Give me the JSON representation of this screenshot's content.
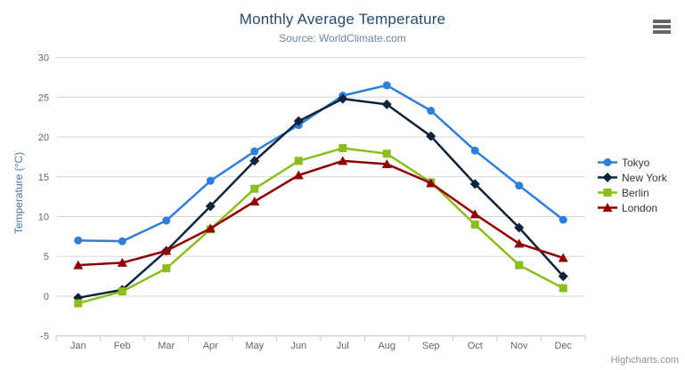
{
  "header": {
    "title": "Monthly Average Temperature",
    "subtitle": "Source: WorldClimate.com",
    "menu_icon": "hamburger-icon"
  },
  "credit": {
    "label": "Highcharts.com"
  },
  "colors": {
    "title": "#274b6d",
    "subtitle": "#6d869f",
    "axis_title": "#4d759e",
    "axis_labels": "#666666",
    "grid_line": "#d8d8d8",
    "axis_line": "#c0d0e0",
    "legend_text": "#333333",
    "menu_icon": "#666666",
    "credit_text": "#909090"
  },
  "chart_data": {
    "type": "line",
    "title": "Monthly Average Temperature",
    "subtitle": "Source: WorldClimate.com",
    "xlabel": "",
    "ylabel": "Temperature (°C)",
    "ylim": [
      -5,
      30
    ],
    "y_tick_step": 5,
    "grid": true,
    "legend_position": "right",
    "categories": [
      "Jan",
      "Feb",
      "Mar",
      "Apr",
      "May",
      "Jun",
      "Jul",
      "Aug",
      "Sep",
      "Oct",
      "Nov",
      "Dec"
    ],
    "series": [
      {
        "name": "Tokyo",
        "color": "#2f7ed8",
        "marker": "circle",
        "values": [
          7.0,
          6.9,
          9.5,
          14.5,
          18.2,
          21.5,
          25.2,
          26.5,
          23.3,
          18.3,
          13.9,
          9.6
        ]
      },
      {
        "name": "New York",
        "color": "#0d233a",
        "marker": "diamond",
        "values": [
          -0.2,
          0.8,
          5.7,
          11.3,
          17.0,
          22.0,
          24.8,
          24.1,
          20.1,
          14.1,
          8.6,
          2.5
        ]
      },
      {
        "name": "Berlin",
        "color": "#8bbc21",
        "marker": "square",
        "values": [
          -0.9,
          0.6,
          3.5,
          8.4,
          13.5,
          17.0,
          18.6,
          17.9,
          14.3,
          9.0,
          3.9,
          1.0
        ]
      },
      {
        "name": "London",
        "color": "#910000",
        "marker": "triangle",
        "values": [
          3.9,
          4.2,
          5.7,
          8.5,
          11.9,
          15.2,
          17.0,
          16.6,
          14.2,
          10.3,
          6.6,
          4.8
        ]
      }
    ]
  }
}
